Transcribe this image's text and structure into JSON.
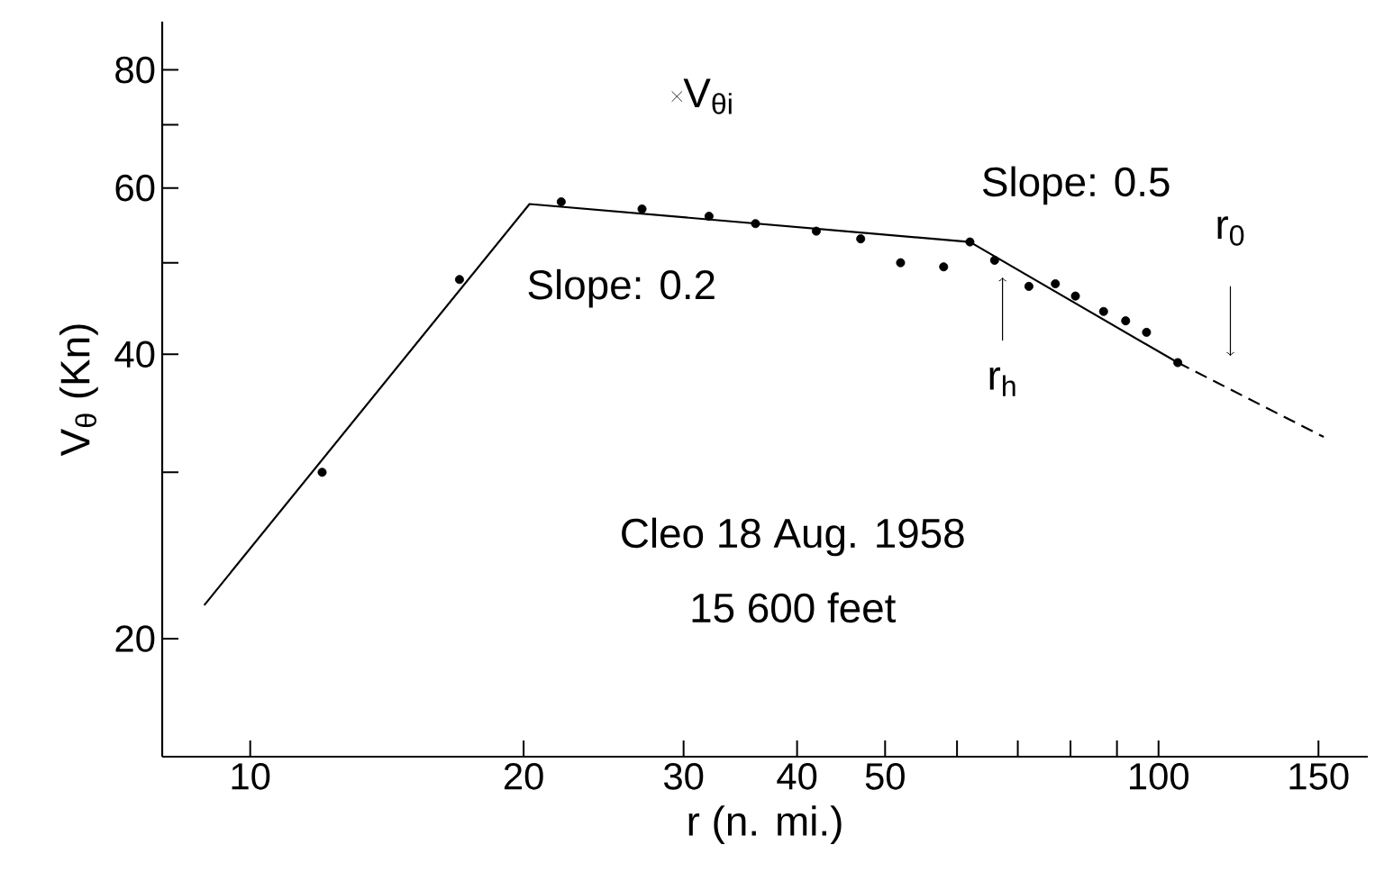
{
  "chart_data": {
    "type": "scatter",
    "xlabel": "r (n. mi.)",
    "ylabel": "V$_{θ}$ (Kn)",
    "log": "xy",
    "xlim": [
      8,
      170
    ],
    "ylim": [
      15,
      90
    ],
    "xticks": [
      10,
      20,
      30,
      40,
      50,
      {
        "value": 60,
        "label": null
      },
      {
        "value": 70,
        "label": null
      },
      {
        "value": 80,
        "label": null
      },
      {
        "value": 90,
        "label": null
      },
      100,
      150
    ],
    "yticks": [
      20,
      {
        "value": 30,
        "label": null
      },
      40,
      {
        "value": 50,
        "label": null
      },
      60,
      {
        "value": 70,
        "label": null
      },
      80
    ],
    "series": [
      {
        "marker": "circle",
        "color": "#000000",
        "x": [
          12,
          17,
          22,
          27,
          32,
          36,
          42,
          47,
          52,
          58,
          62,
          66,
          72,
          77,
          81,
          87,
          92,
          97,
          105
        ],
        "values": [
          30,
          48,
          58,
          57,
          56,
          55,
          54,
          53,
          50,
          49.5,
          52.6,
          50.3,
          47.2,
          47.5,
          46.1,
          44.4,
          43.4,
          42.2,
          39.2
        ]
      },
      {
        "type": "line",
        "marker": "none",
        "line_style": "solid",
        "color": "#000000",
        "x": [
          8.9,
          20.3,
          62,
          105
        ],
        "values": [
          21.7,
          57.7,
          52.6,
          39.2
        ]
      },
      {
        "type": "line",
        "marker": "none",
        "line_style": "dashed",
        "color": "#000000",
        "x": [
          105,
          152
        ],
        "values": [
          39.2,
          32.7
        ]
      },
      {
        "type": "scatter",
        "marker": "cross",
        "name": "V$_{θi}$",
        "color": "#000000",
        "x": [
          29.5
        ],
        "values": [
          75
        ]
      }
    ],
    "annotations": [
      "Slope: 0.2",
      "Slope: 0.5",
      "r$_{h}$",
      "r$_{0}$",
      "Cleo 18 Aug. 1958",
      "15 600 feet"
    ]
  }
}
